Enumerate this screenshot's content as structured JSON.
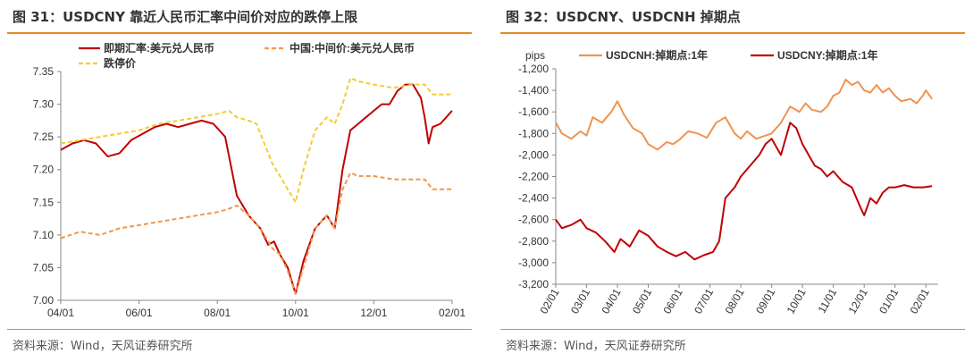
{
  "panels": [
    {
      "title": "图 31：USDCNY 靠近人民币汇率中间价对应的跌停上限",
      "source": "资料来源：Wind，天风证券研究所"
    },
    {
      "title": "图 32：USDCNY、USDCNH 掉期点",
      "source": "资料来源：Wind，天风证券研究所"
    }
  ],
  "colors": {
    "rule": "#e6892a",
    "spot": "#c00000",
    "mid": "#f0984a",
    "limit": "#f5cc2e",
    "cnh": "#ee9450",
    "cny": "#c00000"
  },
  "chart_data": [
    {
      "type": "line",
      "xlabel": "",
      "ylabel": "",
      "x_ticks": [
        "04/01",
        "06/01",
        "08/01",
        "10/01",
        "12/01",
        "02/01"
      ],
      "ylim": [
        7.0,
        7.35
      ],
      "y_ticks": [
        "7.00",
        "7.05",
        "7.10",
        "7.15",
        "7.20",
        "7.25",
        "7.30",
        "7.35"
      ],
      "grid": false,
      "legend": "top",
      "series": [
        {
          "name": "即期汇率:美元兑人民币",
          "style": "solid",
          "x": [
            0,
            0.03,
            0.06,
            0.09,
            0.12,
            0.15,
            0.18,
            0.21,
            0.24,
            0.27,
            0.3,
            0.33,
            0.36,
            0.39,
            0.42,
            0.45,
            0.48,
            0.51,
            0.53,
            0.545,
            0.56,
            0.58,
            0.6,
            0.62,
            0.65,
            0.68,
            0.7,
            0.72,
            0.74,
            0.76,
            0.78,
            0.8,
            0.82,
            0.84,
            0.86,
            0.88,
            0.9,
            0.92,
            0.93,
            0.94,
            0.95,
            0.97,
            1.0
          ],
          "values": [
            7.23,
            7.24,
            7.245,
            7.24,
            7.22,
            7.225,
            7.245,
            7.255,
            7.265,
            7.27,
            7.265,
            7.27,
            7.275,
            7.27,
            7.25,
            7.16,
            7.13,
            7.11,
            7.085,
            7.09,
            7.07,
            7.05,
            7.01,
            7.06,
            7.11,
            7.13,
            7.11,
            7.2,
            7.26,
            7.27,
            7.28,
            7.29,
            7.3,
            7.3,
            7.32,
            7.33,
            7.33,
            7.31,
            7.28,
            7.24,
            7.265,
            7.27,
            7.29
          ]
        },
        {
          "name": "中国:中间价:美元兑人民币",
          "style": "dashed",
          "x": [
            0,
            0.05,
            0.1,
            0.15,
            0.2,
            0.25,
            0.3,
            0.35,
            0.4,
            0.43,
            0.45,
            0.48,
            0.51,
            0.54,
            0.56,
            0.58,
            0.6,
            0.62,
            0.65,
            0.68,
            0.7,
            0.72,
            0.74,
            0.76,
            0.8,
            0.85,
            0.9,
            0.93,
            0.95,
            1.0
          ],
          "values": [
            7.095,
            7.105,
            7.1,
            7.11,
            7.115,
            7.12,
            7.125,
            7.13,
            7.135,
            7.14,
            7.145,
            7.13,
            7.11,
            7.08,
            7.07,
            7.045,
            7.01,
            7.05,
            7.11,
            7.13,
            7.11,
            7.17,
            7.195,
            7.19,
            7.19,
            7.185,
            7.185,
            7.185,
            7.17,
            7.17
          ]
        },
        {
          "name": "跌停价",
          "style": "dashed",
          "x": [
            0,
            0.05,
            0.1,
            0.15,
            0.2,
            0.25,
            0.3,
            0.35,
            0.4,
            0.43,
            0.45,
            0.48,
            0.5,
            0.52,
            0.54,
            0.56,
            0.58,
            0.6,
            0.62,
            0.65,
            0.68,
            0.7,
            0.72,
            0.74,
            0.76,
            0.8,
            0.85,
            0.9,
            0.93,
            0.95,
            1.0
          ],
          "values": [
            7.24,
            7.245,
            7.25,
            7.255,
            7.26,
            7.27,
            7.275,
            7.28,
            7.285,
            7.29,
            7.28,
            7.275,
            7.27,
            7.24,
            7.21,
            7.19,
            7.17,
            7.15,
            7.2,
            7.26,
            7.28,
            7.27,
            7.3,
            7.34,
            7.335,
            7.33,
            7.325,
            7.33,
            7.33,
            7.315,
            7.315
          ]
        }
      ]
    },
    {
      "type": "line",
      "xlabel": "",
      "ylabel": "pips",
      "x_ticks": [
        "02/01",
        "03/01",
        "04/01",
        "05/01",
        "06/01",
        "07/01",
        "08/01",
        "09/01",
        "10/01",
        "11/01",
        "12/01",
        "01/01",
        "02/01"
      ],
      "ylim": [
        -3200,
        -1200
      ],
      "y_ticks": [
        "-1,200",
        "-1,400",
        "-1,600",
        "-1,800",
        "-2,000",
        "-2,200",
        "-2,400",
        "-2,600",
        "-2,800",
        "-3,000",
        "-3,200"
      ],
      "grid": false,
      "legend": "top",
      "series": [
        {
          "name": "USDCNH:掉期点:1年",
          "style": "solid",
          "x": [
            1,
            1.2,
            1.5,
            1.8,
            2.0,
            2.2,
            2.5,
            2.8,
            3.0,
            3.2,
            3.5,
            3.8,
            4.0,
            4.3,
            4.6,
            4.8,
            5.0,
            5.3,
            5.6,
            5.9,
            6.2,
            6.5,
            6.8,
            7.0,
            7.2,
            7.5,
            7.8,
            8.0,
            8.3,
            8.6,
            8.9,
            9.1,
            9.3,
            9.6,
            9.8,
            10.0,
            10.2,
            10.4,
            10.6,
            10.8,
            11.0,
            11.2,
            11.4,
            11.6,
            11.8,
            12.0,
            12.2,
            12.5,
            12.7,
            12.9,
            13.0,
            13.2
          ],
          "values": [
            -1700,
            -1800,
            -1850,
            -1780,
            -1820,
            -1650,
            -1700,
            -1600,
            -1500,
            -1620,
            -1750,
            -1800,
            -1900,
            -1950,
            -1880,
            -1900,
            -1860,
            -1780,
            -1800,
            -1840,
            -1700,
            -1650,
            -1800,
            -1850,
            -1780,
            -1850,
            -1820,
            -1800,
            -1700,
            -1550,
            -1600,
            -1520,
            -1580,
            -1600,
            -1550,
            -1450,
            -1420,
            -1300,
            -1350,
            -1320,
            -1400,
            -1420,
            -1350,
            -1420,
            -1380,
            -1450,
            -1500,
            -1480,
            -1520,
            -1450,
            -1400,
            -1480
          ]
        },
        {
          "name": "USDCNY:掉期点:1年",
          "style": "solid",
          "x": [
            1,
            1.2,
            1.5,
            1.8,
            2.0,
            2.3,
            2.6,
            2.9,
            3.1,
            3.4,
            3.7,
            4.0,
            4.3,
            4.6,
            4.9,
            5.2,
            5.5,
            5.8,
            6.1,
            6.3,
            6.5,
            6.8,
            7.0,
            7.3,
            7.6,
            7.8,
            8.0,
            8.3,
            8.6,
            8.8,
            9.0,
            9.2,
            9.4,
            9.6,
            9.8,
            10.0,
            10.3,
            10.6,
            10.9,
            11.0,
            11.2,
            11.4,
            11.6,
            11.8,
            12.0,
            12.3,
            12.6,
            12.9,
            13.2
          ],
          "values": [
            -2600,
            -2680,
            -2650,
            -2600,
            -2680,
            -2720,
            -2800,
            -2900,
            -2780,
            -2850,
            -2700,
            -2750,
            -2850,
            -2900,
            -2940,
            -2900,
            -2970,
            -2930,
            -2900,
            -2800,
            -2400,
            -2300,
            -2200,
            -2100,
            -2000,
            -1900,
            -1850,
            -2000,
            -1700,
            -1750,
            -1900,
            -2000,
            -2100,
            -2130,
            -2200,
            -2150,
            -2250,
            -2300,
            -2500,
            -2560,
            -2400,
            -2450,
            -2350,
            -2300,
            -2300,
            -2280,
            -2300,
            -2300,
            -2290
          ]
        }
      ]
    }
  ]
}
